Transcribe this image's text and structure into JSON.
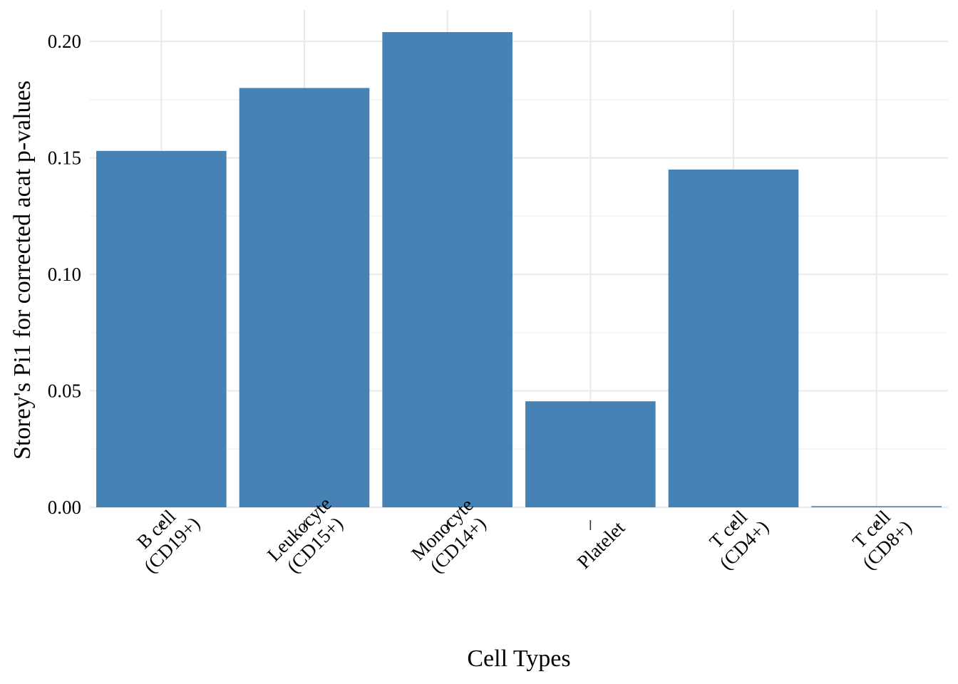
{
  "chart_data": {
    "type": "bar",
    "title": "",
    "xlabel": "Cell Types",
    "ylabel": "Storey's Pi1 for corrected acat p-values",
    "categories": [
      [
        "B cell",
        "(CD19+)"
      ],
      [
        "Leukocyte",
        "(CD15+)"
      ],
      [
        "Monocyte",
        "(CD14+)"
      ],
      [
        "Platelet"
      ],
      [
        "T cell",
        "(CD4+)"
      ],
      [
        "T cell",
        "(CD8+)"
      ]
    ],
    "values": [
      0.153,
      0.18,
      0.204,
      0.0455,
      0.145,
      0.0005
    ],
    "ylim": [
      0,
      0.2135
    ],
    "yticks": [
      "0.00",
      "0.05",
      "0.10",
      "0.15",
      "0.20"
    ],
    "ytick_values": [
      0,
      0.05,
      0.1,
      0.15,
      0.2
    ],
    "bar_color": "#4682b4",
    "grid": true,
    "legend": "none"
  }
}
